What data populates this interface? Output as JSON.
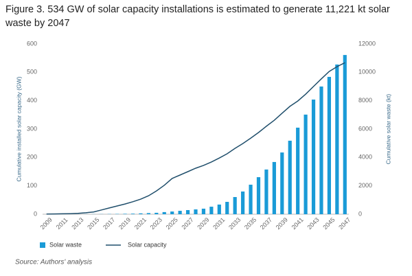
{
  "chart_data": {
    "type": "combo",
    "title": "Figure 3. 534 GW of solar capacity installations is estimated to generate 11,221 kt solar waste by 2047",
    "ylabel": "Cumulative installed solar capacity (GW)",
    "y2label": "Cumulative solar waste (kt)",
    "source": "Source: Authors' analysis",
    "categories": [
      "2009",
      null,
      "2011",
      null,
      "2013",
      null,
      "2015",
      null,
      "2017",
      null,
      "2019",
      null,
      "2021",
      null,
      "2023",
      null,
      "2025",
      null,
      "2027",
      null,
      "2029",
      null,
      "2031",
      null,
      "2033",
      null,
      "2035",
      null,
      "2037",
      null,
      "2039",
      null,
      "2041",
      null,
      "2043",
      null,
      "2045",
      null,
      "2047"
    ],
    "ylim": [
      0,
      600
    ],
    "yticks": [
      0,
      100,
      200,
      300,
      400,
      500,
      600
    ],
    "y2lim": [
      0,
      12000
    ],
    "y2ticks": [
      0,
      2000,
      4000,
      6000,
      8000,
      10000,
      12000
    ],
    "grid": false,
    "series": [
      {
        "name": "Solar waste",
        "type": "bar",
        "axis": "y2",
        "color": "#1a9bd7",
        "values": [
          0,
          1,
          1,
          2,
          3,
          5,
          8,
          10,
          15,
          20,
          30,
          40,
          60,
          80,
          100,
          150,
          190,
          240,
          290,
          340,
          390,
          530,
          680,
          870,
          1210,
          1600,
          2080,
          2610,
          3150,
          3680,
          4350,
          5180,
          6100,
          7020,
          8080,
          9000,
          9680,
          10550,
          11221
        ]
      },
      {
        "name": "Solar capacity",
        "type": "line",
        "color": "#1f4e6b",
        "values": [
          0.5,
          1,
          1.5,
          2,
          3,
          5,
          8,
          15,
          22,
          29,
          36,
          44,
          53,
          65,
          82,
          102,
          126,
          138,
          150,
          162,
          172,
          184,
          198,
          213,
          232,
          249,
          268,
          288,
          310,
          331,
          356,
          380,
          399,
          423,
          450,
          477,
          503,
          520,
          534
        ]
      }
    ]
  }
}
